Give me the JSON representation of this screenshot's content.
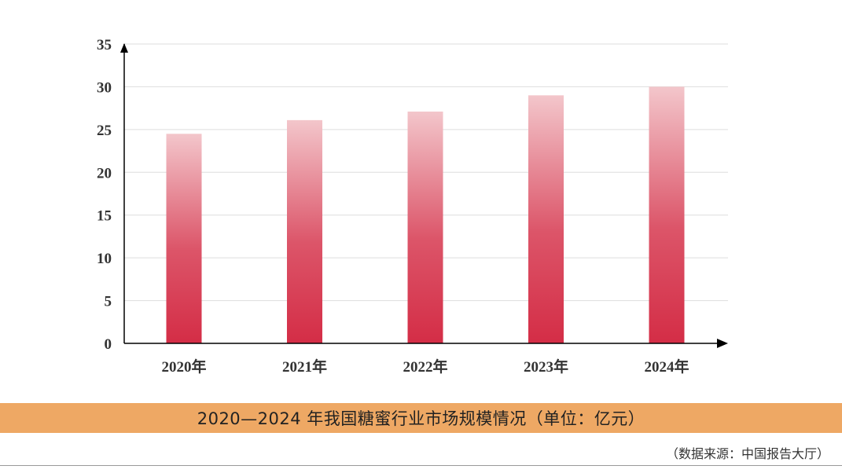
{
  "chart_data": {
    "type": "bar",
    "title": "2020—2024 年我国糖蜜行业市场规模情况（单位：亿元）",
    "source": "（数据来源：中国报告大厅）",
    "xlabel": "",
    "ylabel": "",
    "categories": [
      "2020年",
      "2021年",
      "2022年",
      "2023年",
      "2024年"
    ],
    "values": [
      24.5,
      26.1,
      27.1,
      29.0,
      30.0
    ],
    "ylim": [
      0,
      35
    ],
    "yticks": [
      0,
      5,
      10,
      15,
      20,
      25,
      30,
      35
    ],
    "grid": true,
    "legend": "none",
    "colors": {
      "bar_top": "#f3c6cb",
      "bar_bottom": "#d42d46",
      "caption_bg": "#eea864",
      "grid": "#dddddd",
      "axis": "#000000"
    }
  }
}
